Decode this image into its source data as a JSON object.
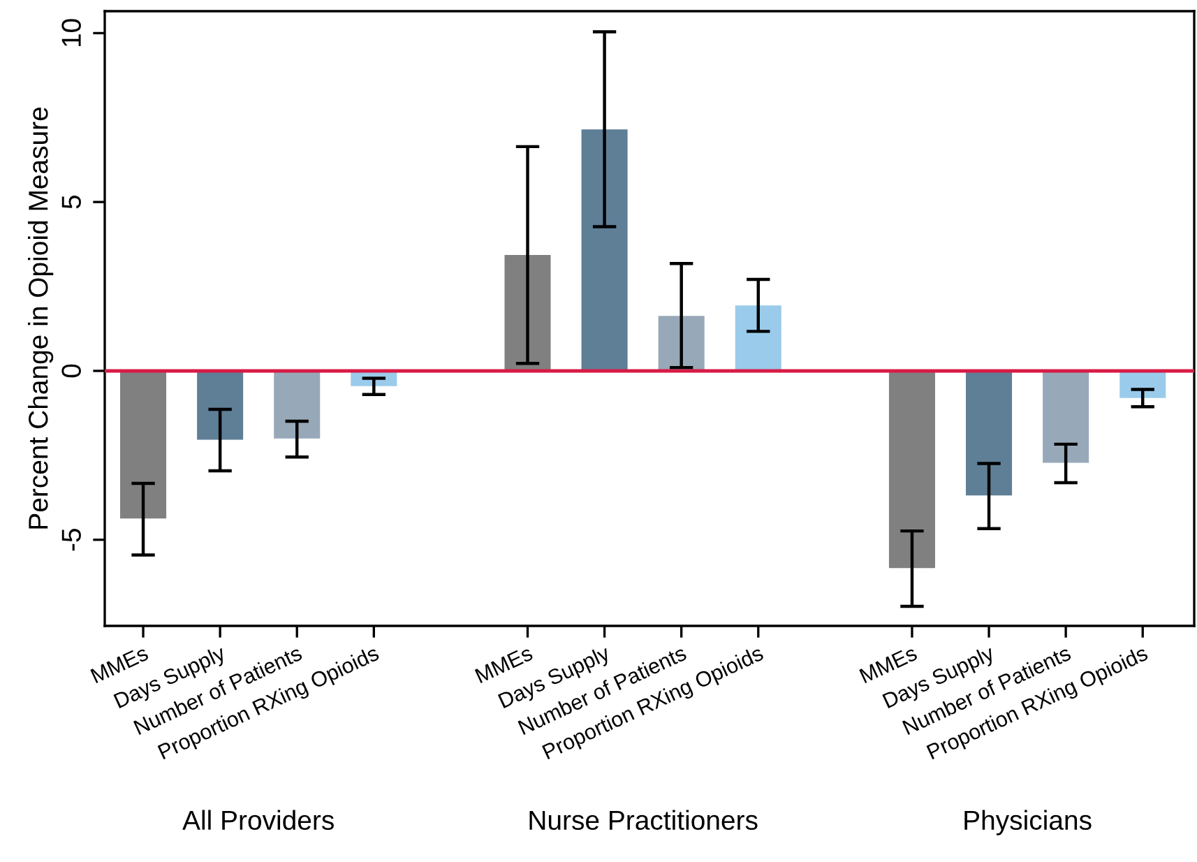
{
  "chart_data": {
    "type": "bar",
    "ylabel": "Percent Change in Opioid Measure",
    "categories": [
      "MMEs",
      "Days Supply",
      "Number of Patients",
      "Proportion RXing Opioids",
      null,
      "MMEs",
      "Days Supply",
      "Number of Patients",
      "Proportion RXing Opioids",
      null,
      "MMEs",
      "Days Supply",
      "Number of Patients",
      "Proportion RXing Opioids"
    ],
    "values": [
      -4.37,
      -2.04,
      -2.0,
      -0.45,
      null,
      3.43,
      7.15,
      1.63,
      1.94,
      null,
      -5.84,
      -3.69,
      -2.72,
      -0.8
    ],
    "colors": [
      "#808080",
      "#5f7f97",
      "#97a8b9",
      "#9acbeb",
      null,
      "#808080",
      "#5f7f97",
      "#97a8b9",
      "#9acbeb",
      null,
      "#808080",
      "#5f7f97",
      "#97a8b9",
      "#9acbeb"
    ],
    "errors": [
      [
        -5.45,
        -3.33
      ],
      [
        -2.96,
        -1.14
      ],
      [
        -2.55,
        -1.49
      ],
      [
        -0.7,
        -0.22
      ],
      null,
      [
        0.22,
        6.64
      ],
      [
        4.27,
        10.04
      ],
      [
        0.1,
        3.18
      ],
      [
        1.17,
        2.71
      ],
      null,
      [
        -6.97,
        -4.74
      ],
      [
        -4.67,
        -2.74
      ],
      [
        -3.31,
        -2.17
      ],
      [
        -1.06,
        -0.55
      ]
    ],
    "annotations": [
      "All Providers",
      "Nurse Practitioners",
      "Physicians"
    ],
    "ylim": [
      -7.55,
      10.65
    ],
    "yticks": [
      -5,
      0,
      5,
      10
    ],
    "ref_lines": [
      {
        "axis": "y",
        "value": 0,
        "color": "#d81b45"
      }
    ],
    "grid": false,
    "legend": false
  }
}
